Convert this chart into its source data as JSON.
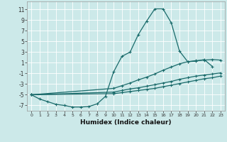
{
  "xlabel": "Humidex (Indice chaleur)",
  "bg_color": "#cce9e9",
  "grid_color": "#b8d8d8",
  "line_color": "#1a6b6b",
  "xlim": [
    -0.5,
    23.5
  ],
  "ylim": [
    -8.0,
    12.5
  ],
  "yticks": [
    -7,
    -5,
    -3,
    -1,
    1,
    3,
    5,
    7,
    9,
    11
  ],
  "xticks": [
    0,
    1,
    2,
    3,
    4,
    5,
    6,
    7,
    8,
    9,
    10,
    11,
    12,
    13,
    14,
    15,
    16,
    17,
    18,
    19,
    20,
    21,
    22,
    23
  ],
  "lines": [
    {
      "x": [
        0,
        1,
        2,
        3,
        4,
        5,
        6,
        7,
        8,
        9,
        10,
        11,
        12,
        13,
        14,
        15,
        16,
        17,
        18,
        19,
        20,
        21,
        22
      ],
      "y": [
        -5.0,
        -5.8,
        -6.3,
        -6.8,
        -7.0,
        -7.3,
        -7.3,
        -7.2,
        -6.7,
        -5.3,
        -0.7,
        2.2,
        3.0,
        6.3,
        8.8,
        11.1,
        11.1,
        8.5,
        3.2,
        1.2,
        1.3,
        1.6,
        0.3
      ]
    },
    {
      "x": [
        0,
        10,
        11,
        12,
        13,
        14,
        15,
        16,
        17,
        18,
        19,
        20,
        21,
        22,
        23
      ],
      "y": [
        -5.0,
        -3.8,
        -3.3,
        -2.8,
        -2.2,
        -1.7,
        -1.1,
        -0.4,
        0.2,
        0.8,
        1.2,
        1.4,
        1.5,
        1.6,
        1.5
      ]
    },
    {
      "x": [
        0,
        10,
        11,
        12,
        13,
        14,
        15,
        16,
        17,
        18,
        19,
        20,
        21,
        22,
        23
      ],
      "y": [
        -5.0,
        -4.5,
        -4.2,
        -3.9,
        -3.7,
        -3.4,
        -3.1,
        -2.8,
        -2.5,
        -2.1,
        -1.8,
        -1.5,
        -1.3,
        -1.1,
        -0.9
      ]
    },
    {
      "x": [
        0,
        10,
        11,
        12,
        13,
        14,
        15,
        16,
        17,
        18,
        19,
        20,
        21,
        22,
        23
      ],
      "y": [
        -5.0,
        -4.8,
        -4.6,
        -4.4,
        -4.2,
        -4.0,
        -3.8,
        -3.5,
        -3.2,
        -2.9,
        -2.6,
        -2.3,
        -2.0,
        -1.8,
        -1.5
      ]
    }
  ]
}
